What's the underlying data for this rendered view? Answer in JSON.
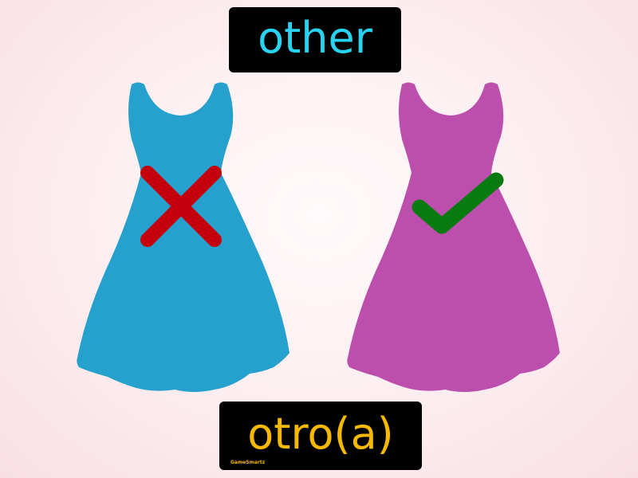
{
  "flashcard": {
    "english_word": "other",
    "spanish_word": "otro(a)",
    "brand": "GameSmartz"
  },
  "colors": {
    "english_word": "#28d2f0",
    "spanish_word": "#f6b800",
    "dress_left": "#26a0cc",
    "dress_right": "#bc4fae",
    "x_mark": "#c4000c",
    "check_mark": "#077a10"
  },
  "icons": {
    "dress_left": "blue-dress-icon",
    "dress_right": "purple-dress-icon",
    "x_mark": "cross-mark-icon",
    "check_mark": "check-mark-icon"
  }
}
